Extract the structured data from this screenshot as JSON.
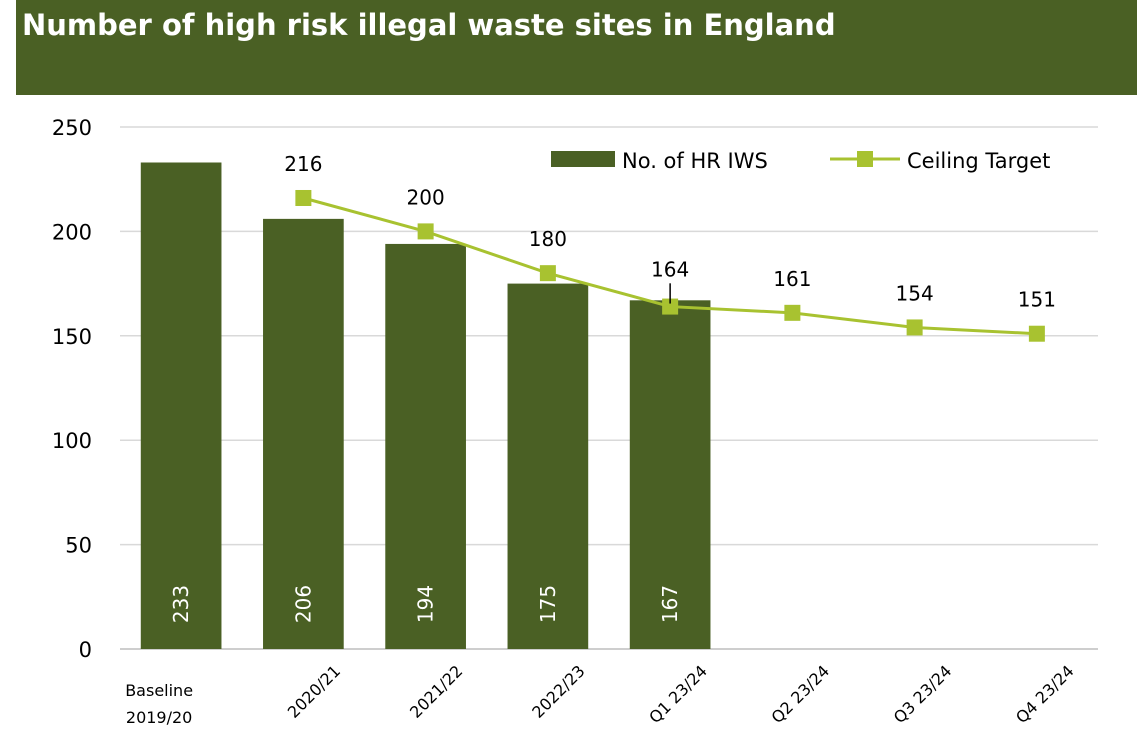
{
  "chart_data": {
    "type": "bar",
    "title": "Number of high risk illegal waste sites in England",
    "categories": [
      "Baseline 2019/20",
      "2020/21",
      "2021/22",
      "2022/23",
      "Q1 23/24",
      "Q2 23/24",
      "Q3 23/24",
      "Q4 23/24"
    ],
    "ylim": [
      0,
      250
    ],
    "yticks": [
      "0",
      "50",
      "100",
      "150",
      "200",
      "250"
    ],
    "grid": true,
    "legend_position": "top-right",
    "series": [
      {
        "name": "No. of HR IWS",
        "kind": "bar",
        "color": "#4a6024",
        "values": [
          233,
          206,
          194,
          175,
          167,
          null,
          null,
          null
        ]
      },
      {
        "name": "Ceiling Target",
        "kind": "line",
        "color": "#a8c230",
        "values": [
          null,
          216,
          200,
          180,
          164,
          161,
          154,
          151
        ]
      }
    ]
  }
}
